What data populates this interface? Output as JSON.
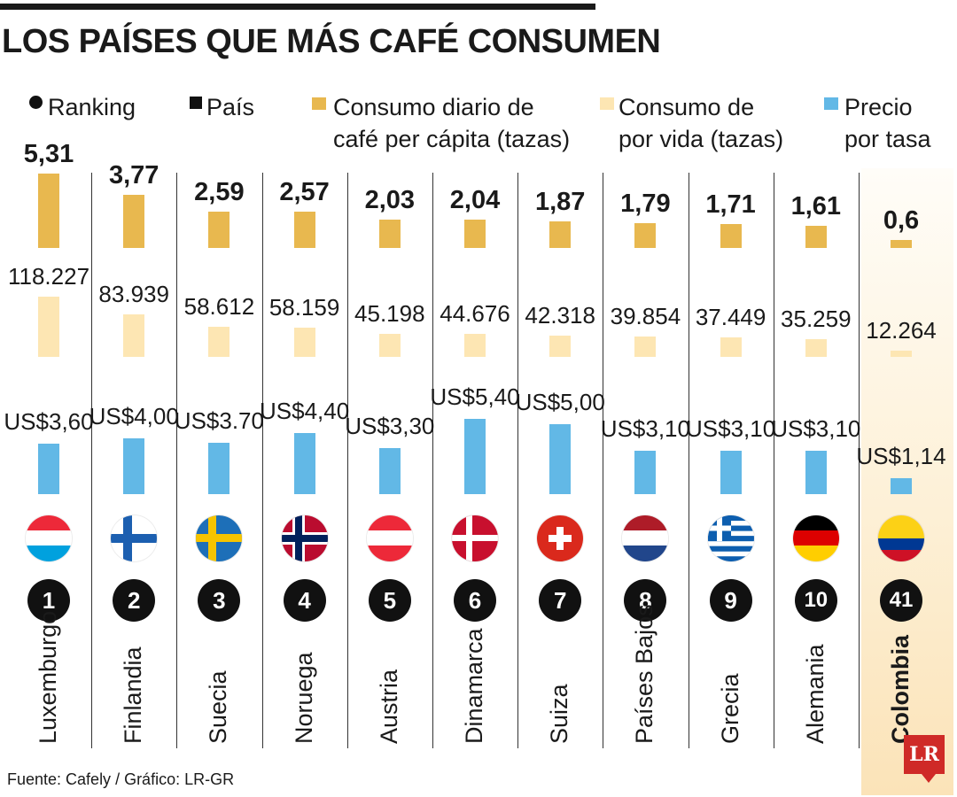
{
  "title": "LOS PAÍSES QUE MÁS CAFÉ CONSUMEN",
  "legend": {
    "ranking": "Ranking",
    "pais": "País",
    "daily_line1": "Consumo diario de",
    "daily_line2": "café per cápita (tazas)",
    "life_line1": "Consumo de",
    "life_line2": "por vida (tazas)",
    "price_line1": "Precio",
    "price_line2": "por tasa"
  },
  "colors": {
    "daily": "#e8b84f",
    "lifetime": "#fde6b3",
    "price": "#62b8e6",
    "highlight": "#fbe3b8"
  },
  "source": "Fuente: Cafely / Gráfico: LR-GR",
  "logo_text": "LR",
  "chart_data": {
    "type": "bar",
    "categories": [
      "Luxemburgo",
      "Finlandia",
      "Suecia",
      "Noruega",
      "Austria",
      "Dinamarca",
      "Suiza",
      "Países Bajos",
      "Grecia",
      "Alemania",
      "Colombia"
    ],
    "ranks": [
      "1",
      "2",
      "3",
      "4",
      "5",
      "6",
      "7",
      "8",
      "9",
      "10",
      "41"
    ],
    "flags": [
      "luxembourg-flag",
      "finland-flag",
      "sweden-flag",
      "norway-flag",
      "austria-flag",
      "denmark-flag",
      "switzerland-flag",
      "netherlands-flag",
      "greece-flag",
      "germany-flag",
      "colombia-flag"
    ],
    "highlight_index": 10,
    "series": [
      {
        "name": "Consumo diario de café per cápita (tazas)",
        "values": [
          5.31,
          3.77,
          2.59,
          2.57,
          2.03,
          2.04,
          1.87,
          1.79,
          1.71,
          1.61,
          0.6
        ],
        "labels": [
          "5,31",
          "3,77",
          "2,59",
          "2,57",
          "2,03",
          "2,04",
          "1,87",
          "1,79",
          "1,71",
          "1,61",
          "0,6"
        ]
      },
      {
        "name": "Consumo de por vida (tazas)",
        "values": [
          118227,
          83939,
          58612,
          58159,
          45198,
          44676,
          42318,
          39854,
          37449,
          35259,
          12264
        ],
        "labels": [
          "118.227",
          "83.939",
          "58.612",
          "58.159",
          "45.198",
          "44.676",
          "42.318",
          "39.854",
          "37.449",
          "35.259",
          "12.264"
        ]
      },
      {
        "name": "Precio por tasa",
        "values": [
          3.6,
          4.0,
          3.7,
          4.4,
          3.3,
          5.4,
          5.0,
          3.1,
          3.1,
          3.1,
          1.14
        ],
        "labels": [
          "US$3,60",
          "US$4,00",
          "US$3.70",
          "US$4,40",
          "US$3,30",
          "US$5,40",
          "US$5,00",
          "US$3,10",
          "US$3,10",
          "US$3,10",
          "US$1,14"
        ]
      }
    ]
  }
}
